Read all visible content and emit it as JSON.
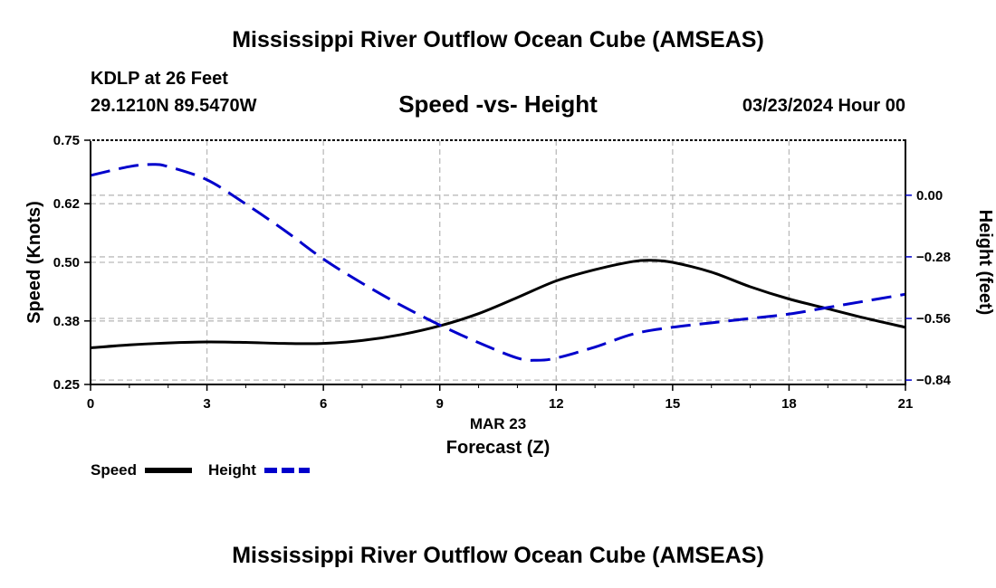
{
  "header": {
    "main_title": "Mississippi River Outflow Ocean Cube (AMSEAS)",
    "station": "KDLP at 26 Feet",
    "coordinates": "29.1210N  89.5470W",
    "subtitle": "Speed -vs- Height",
    "datetime": "03/23/2024 Hour 00"
  },
  "footer": {
    "main_title": "Mississippi River Outflow Ocean Cube (AMSEAS)"
  },
  "colors": {
    "speed": "#000000",
    "height": "#0000cc",
    "grid": "#bbbbbb"
  },
  "chart_data": {
    "type": "line",
    "title": "Speed -vs- Height",
    "xlabel": "Forecast (Z)",
    "xdate": "MAR 23",
    "ylabel": "Speed (Knots)",
    "y2label": "Height (feet)",
    "xlim": [
      0,
      21
    ],
    "ylim": [
      0.25,
      0.75
    ],
    "y2lim": [
      -0.86,
      0.25
    ],
    "xticks": [
      0,
      3,
      6,
      9,
      12,
      15,
      18,
      21
    ],
    "xtick_labels": [
      "0",
      "3",
      "6",
      "9",
      "12",
      "15",
      "18",
      "21"
    ],
    "yticks": [
      0.25,
      0.38,
      0.5,
      0.62,
      0.75
    ],
    "ytick_labels": [
      "0.25",
      "0.38",
      "0.50",
      "0.62",
      "0.75"
    ],
    "y2ticks": [
      0.0,
      -0.28,
      -0.56,
      -0.84
    ],
    "y2tick_labels": [
      "0.00",
      "−0.28",
      "−0.56",
      "−0.84"
    ],
    "grid": true,
    "series": [
      {
        "name": "Speed",
        "axis": "left",
        "style": "solid",
        "x": [
          0,
          1,
          2,
          3,
          4,
          5,
          6,
          7,
          8,
          9,
          10,
          11,
          12,
          13,
          14,
          14.5,
          15,
          16,
          17,
          18,
          19,
          20,
          21
        ],
        "values": [
          0.325,
          0.331,
          0.335,
          0.337,
          0.336,
          0.334,
          0.334,
          0.34,
          0.352,
          0.37,
          0.395,
          0.428,
          0.462,
          0.485,
          0.502,
          0.504,
          0.5,
          0.48,
          0.45,
          0.425,
          0.405,
          0.385,
          0.367
        ]
      },
      {
        "name": "Height",
        "axis": "right",
        "style": "dashed",
        "x": [
          0,
          1,
          1.6,
          2,
          3,
          4,
          5,
          6,
          7,
          8,
          9,
          10,
          11,
          11.5,
          12,
          13,
          14,
          15,
          16,
          17,
          18,
          19,
          20,
          21
        ],
        "values": [
          0.09,
          0.13,
          0.14,
          0.13,
          0.07,
          -0.04,
          -0.16,
          -0.29,
          -0.4,
          -0.5,
          -0.59,
          -0.67,
          -0.74,
          -0.75,
          -0.74,
          -0.69,
          -0.63,
          -0.6,
          -0.58,
          -0.56,
          -0.54,
          -0.51,
          -0.48,
          -0.45
        ]
      }
    ],
    "legend": [
      {
        "name": "Speed",
        "style": "solid"
      },
      {
        "name": "Height",
        "style": "dashed"
      }
    ],
    "legend_position": "bottom-left"
  }
}
